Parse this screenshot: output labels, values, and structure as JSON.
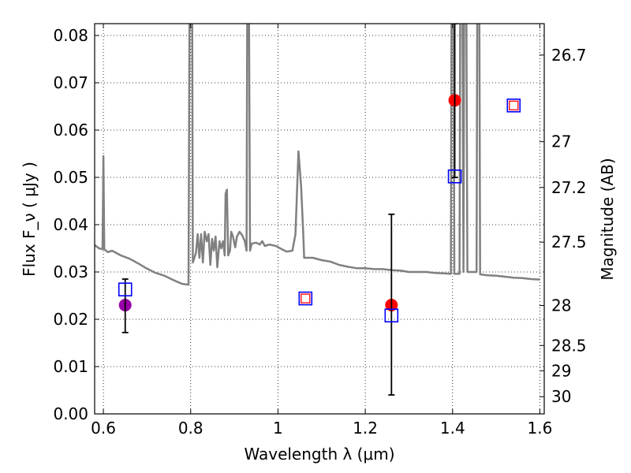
{
  "chart_data": {
    "type": "line",
    "xlabel": "Wavelength  λ (μm)",
    "ylabel": "Flux  F_ν  ( μJy )",
    "ylabel_right": "Magnitude (AB)",
    "xlim": [
      0.58,
      1.61
    ],
    "ylim": [
      0.0,
      0.0825
    ],
    "grid": true,
    "grid_style": "dotted",
    "x_ticks": [
      0.6,
      0.8,
      1.0,
      1.2,
      1.4,
      1.6
    ],
    "x_tick_labels": [
      "0.6",
      "0.8",
      "1",
      "1.2",
      "1.4",
      "1.6"
    ],
    "y_ticks": [
      0.0,
      0.01,
      0.02,
      0.03,
      0.04,
      0.05,
      0.06,
      0.07,
      0.08
    ],
    "y_tick_labels": [
      "0.00",
      "0.01",
      "0.02",
      "0.03",
      "0.04",
      "0.05",
      "0.06",
      "0.07",
      "0.08"
    ],
    "right_axis_ticks": [
      {
        "label": "26.7",
        "mag": 26.7
      },
      {
        "label": "27",
        "mag": 27.0
      },
      {
        "label": "27.2",
        "mag": 27.2
      },
      {
        "label": "27.5",
        "mag": 27.5
      },
      {
        "label": "28",
        "mag": 28.0
      },
      {
        "label": "28.5",
        "mag": 28.5
      },
      {
        "label": "29",
        "mag": 29.0
      },
      {
        "label": "30",
        "mag": 30.0
      }
    ],
    "series": [
      {
        "kind": "line",
        "color": "#808080",
        "points": [
          [
            0.58,
            0.0357
          ],
          [
            0.59,
            0.035
          ],
          [
            0.598,
            0.0348
          ],
          [
            0.6,
            0.0545
          ],
          [
            0.602,
            0.0348
          ],
          [
            0.61,
            0.0342
          ],
          [
            0.62,
            0.0345
          ],
          [
            0.64,
            0.0335
          ],
          [
            0.66,
            0.0328
          ],
          [
            0.68,
            0.0318
          ],
          [
            0.7,
            0.0307
          ],
          [
            0.72,
            0.0298
          ],
          [
            0.74,
            0.0292
          ],
          [
            0.76,
            0.0283
          ],
          [
            0.78,
            0.0275
          ],
          [
            0.795,
            0.0273
          ],
          [
            0.798,
            0.1
          ],
          [
            0.803,
            0.1
          ],
          [
            0.805,
            0.032
          ],
          [
            0.812,
            0.034
          ],
          [
            0.816,
            0.038
          ],
          [
            0.82,
            0.033
          ],
          [
            0.824,
            0.038
          ],
          [
            0.828,
            0.032
          ],
          [
            0.832,
            0.0385
          ],
          [
            0.837,
            0.0365
          ],
          [
            0.841,
            0.038
          ],
          [
            0.845,
            0.0315
          ],
          [
            0.849,
            0.037
          ],
          [
            0.853,
            0.0345
          ],
          [
            0.857,
            0.0375
          ],
          [
            0.861,
            0.031
          ],
          [
            0.866,
            0.0365
          ],
          [
            0.87,
            0.035
          ],
          [
            0.874,
            0.0365
          ],
          [
            0.878,
            0.0335
          ],
          [
            0.88,
            0.0465
          ],
          [
            0.883,
            0.0474
          ],
          [
            0.886,
            0.0335
          ],
          [
            0.89,
            0.0345
          ],
          [
            0.893,
            0.0385
          ],
          [
            0.897,
            0.0375
          ],
          [
            0.902,
            0.0352
          ],
          [
            0.906,
            0.0375
          ],
          [
            0.912,
            0.0385
          ],
          [
            0.918,
            0.0378
          ],
          [
            0.924,
            0.0365
          ],
          [
            0.928,
            0.0345
          ],
          [
            0.93,
            0.1
          ],
          [
            0.933,
            0.1
          ],
          [
            0.936,
            0.0345
          ],
          [
            0.94,
            0.036
          ],
          [
            0.95,
            0.0362
          ],
          [
            0.958,
            0.0358
          ],
          [
            0.964,
            0.0365
          ],
          [
            0.97,
            0.0355
          ],
          [
            0.98,
            0.0358
          ],
          [
            0.995,
            0.0355
          ],
          [
            1.005,
            0.035
          ],
          [
            1.02,
            0.0343
          ],
          [
            1.033,
            0.0345
          ],
          [
            1.04,
            0.038
          ],
          [
            1.047,
            0.0555
          ],
          [
            1.053,
            0.048
          ],
          [
            1.058,
            0.038
          ],
          [
            1.06,
            0.033
          ],
          [
            1.08,
            0.033
          ],
          [
            1.1,
            0.0325
          ],
          [
            1.12,
            0.0322
          ],
          [
            1.14,
            0.0315
          ],
          [
            1.16,
            0.0311
          ],
          [
            1.18,
            0.0308
          ],
          [
            1.2,
            0.0308
          ],
          [
            1.22,
            0.0306
          ],
          [
            1.24,
            0.0306
          ],
          [
            1.26,
            0.0304
          ],
          [
            1.28,
            0.0303
          ],
          [
            1.3,
            0.03
          ],
          [
            1.32,
            0.03
          ],
          [
            1.34,
            0.03
          ],
          [
            1.36,
            0.0298
          ],
          [
            1.38,
            0.0297
          ],
          [
            1.396,
            0.0296
          ],
          [
            1.398,
            0.1
          ],
          [
            1.402,
            0.1
          ],
          [
            1.404,
            0.0296
          ],
          [
            1.408,
            0.0296
          ],
          [
            1.416,
            0.0296
          ],
          [
            1.418,
            0.1
          ],
          [
            1.422,
            0.1
          ],
          [
            1.425,
            0.03
          ],
          [
            1.427,
            0.1
          ],
          [
            1.431,
            0.1
          ],
          [
            1.434,
            0.03
          ],
          [
            1.44,
            0.03
          ],
          [
            1.455,
            0.03
          ],
          [
            1.457,
            0.1
          ],
          [
            1.461,
            0.1
          ],
          [
            1.463,
            0.0295
          ],
          [
            1.48,
            0.0293
          ],
          [
            1.5,
            0.0292
          ],
          [
            1.52,
            0.029
          ],
          [
            1.54,
            0.0288
          ],
          [
            1.56,
            0.0287
          ],
          [
            1.58,
            0.0285
          ],
          [
            1.6,
            0.0284
          ]
        ]
      },
      {
        "kind": "markers",
        "marker": "circle",
        "points": [
          {
            "x": 0.65,
            "y": 0.023,
            "color": "#9900a8"
          },
          {
            "x": 1.26,
            "y": 0.023,
            "color": "#ff0000"
          },
          {
            "x": 1.405,
            "y": 0.0663,
            "color": "#ff0000"
          }
        ]
      },
      {
        "kind": "error_bars",
        "color": "#000000",
        "points": [
          {
            "x": 0.65,
            "low": 0.0172,
            "high": 0.0285
          },
          {
            "x": 1.26,
            "low": 0.004,
            "high": 0.0422
          },
          {
            "x": 1.405,
            "low": 0.05,
            "high": 0.0825
          }
        ]
      },
      {
        "kind": "markers",
        "marker": "open-square",
        "color": "#0000ff",
        "points": [
          {
            "x": 0.65,
            "y": 0.0263
          },
          {
            "x": 1.063,
            "y": 0.0244
          },
          {
            "x": 1.26,
            "y": 0.0208
          },
          {
            "x": 1.405,
            "y": 0.0502
          },
          {
            "x": 1.54,
            "y": 0.0652
          }
        ]
      },
      {
        "kind": "markers",
        "marker": "open-square",
        "color": "#ff0000",
        "points": [
          {
            "x": 1.063,
            "y": 0.0244
          },
          {
            "x": 1.54,
            "y": 0.0652
          }
        ]
      }
    ]
  }
}
